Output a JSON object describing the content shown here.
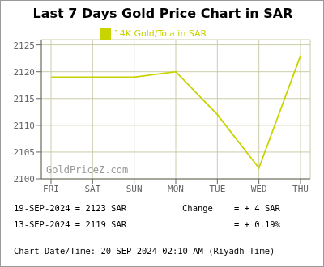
{
  "chart_data": {
    "type": "line",
    "title": "Last 7 Days Gold Price Chart in SAR",
    "categories": [
      "FRI",
      "SAT",
      "SUN",
      "MON",
      "TUE",
      "WED",
      "THU"
    ],
    "series": [
      {
        "name": "14K Gold/Tola in SAR",
        "color": "#c8d400",
        "values": [
          2119,
          2119,
          2119,
          2120,
          2112,
          2102,
          2123
        ]
      }
    ],
    "ylim": [
      2100,
      2126
    ],
    "yticks": [
      2100,
      2105,
      2110,
      2115,
      2120,
      2125
    ],
    "grid": true,
    "legend": "top",
    "annotations": [
      "GoldPriceZ.com",
      "19-SEP-2024 = 2123 SAR",
      "13-SEP-2024 = 2119 SAR",
      "Change",
      "= + 4 SAR",
      "= + 0.19%",
      "Chart Date/Time: 20-SEP-2024 02:10 AM (Riyadh Time)"
    ]
  }
}
